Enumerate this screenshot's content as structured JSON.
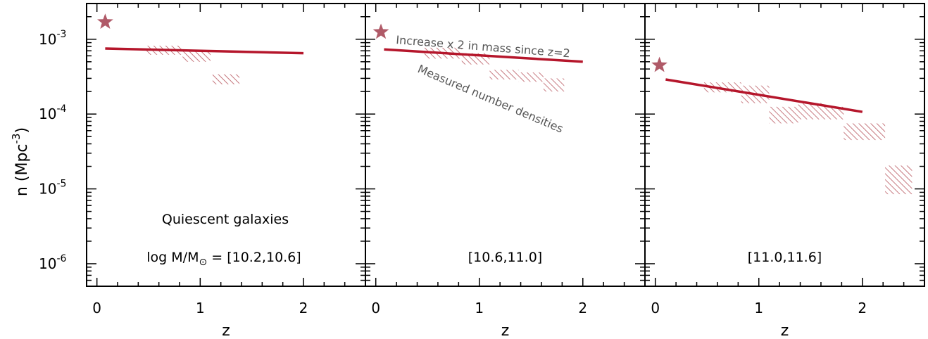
{
  "colors": {
    "line": "#b5162b",
    "hatch": "#b8575f",
    "star": "#b05a68",
    "note": "#555555",
    "axes": "#000000"
  },
  "axes": {
    "ylabel_base": "n  (Mpc",
    "ylabel_exp": "-3",
    "ylabel_close": ")",
    "xlabel": "z",
    "yscale": "log",
    "ylim": [
      5e-07,
      0.003
    ],
    "y_ticks": [
      {
        "value": 0.001,
        "base": "10",
        "exp": "-3"
      },
      {
        "value": 0.0001,
        "base": "10",
        "exp": "-4"
      },
      {
        "value": 1e-05,
        "base": "10",
        "exp": "-5"
      },
      {
        "value": 1e-06,
        "base": "10",
        "exp": "-6"
      }
    ]
  },
  "chart_data": [
    {
      "type": "line",
      "xlabel": "z",
      "xlim": [
        -0.1,
        2.6
      ],
      "x_ticks": [
        "0",
        "1",
        "2"
      ],
      "annotations": {
        "title": "Quiescent galaxies",
        "mass_prefix": "log M/M",
        "mass_range": " = [10.2,10.6]"
      },
      "line": {
        "x": [
          0.08,
          2.0
        ],
        "y": [
          0.00075,
          0.00065
        ]
      },
      "star": {
        "x": 0.08,
        "y": 0.0017
      },
      "measured_boxes": [
        {
          "x0": 0.47,
          "x1": 0.83,
          "y0": 0.00062,
          "y1": 0.00082
        },
        {
          "x0": 0.83,
          "x1": 1.1,
          "y0": 0.0005,
          "y1": 0.00069
        },
        {
          "x0": 1.12,
          "x1": 1.38,
          "y0": 0.00025,
          "y1": 0.00034
        }
      ]
    },
    {
      "type": "line",
      "xlabel": "z",
      "xlim": [
        -0.1,
        2.6
      ],
      "x_ticks": [
        "0",
        "1",
        "2"
      ],
      "annotations": {
        "mass_range": "[10.6,11.0]",
        "increase_note": "Increase x 2 in mass since z=2",
        "measured_note": "Measured number densities"
      },
      "line": {
        "x": [
          0.08,
          2.0
        ],
        "y": [
          0.00073,
          0.0005
        ]
      },
      "star": {
        "x": 0.05,
        "y": 0.00125
      },
      "measured_boxes": [
        {
          "x0": 0.47,
          "x1": 0.83,
          "y0": 0.00055,
          "y1": 0.00077
        },
        {
          "x0": 0.83,
          "x1": 1.1,
          "y0": 0.00046,
          "y1": 0.00065
        },
        {
          "x0": 1.1,
          "x1": 1.38,
          "y0": 0.00029,
          "y1": 0.00039
        },
        {
          "x0": 1.38,
          "x1": 1.62,
          "y0": 0.00027,
          "y1": 0.00036
        },
        {
          "x0": 1.62,
          "x1": 1.82,
          "y0": 0.0002,
          "y1": 0.0003
        }
      ]
    },
    {
      "type": "line",
      "xlabel": "z",
      "xlim": [
        -0.1,
        2.6
      ],
      "x_ticks": [
        "0",
        "1",
        "2"
      ],
      "annotations": {
        "mass_range": "[11.0,11.6]"
      },
      "line": {
        "x": [
          0.1,
          2.0
        ],
        "y": [
          0.00029,
          0.000107
        ]
      },
      "star": {
        "x": 0.04,
        "y": 0.00045
      },
      "measured_boxes": [
        {
          "x0": 0.47,
          "x1": 0.83,
          "y0": 0.000195,
          "y1": 0.000265
        },
        {
          "x0": 0.83,
          "x1": 1.1,
          "y0": 0.00014,
          "y1": 0.00024
        },
        {
          "x0": 1.1,
          "x1": 1.38,
          "y0": 7.5e-05,
          "y1": 0.000125
        },
        {
          "x0": 1.38,
          "x1": 1.62,
          "y0": 8.5e-05,
          "y1": 0.00014
        },
        {
          "x0": 1.62,
          "x1": 1.82,
          "y0": 8.5e-05,
          "y1": 0.000125
        },
        {
          "x0": 1.82,
          "x1": 2.22,
          "y0": 4.5e-05,
          "y1": 7.5e-05
        },
        {
          "x0": 2.22,
          "x1": 2.48,
          "y0": 8.5e-06,
          "y1": 2.05e-05
        }
      ]
    }
  ]
}
